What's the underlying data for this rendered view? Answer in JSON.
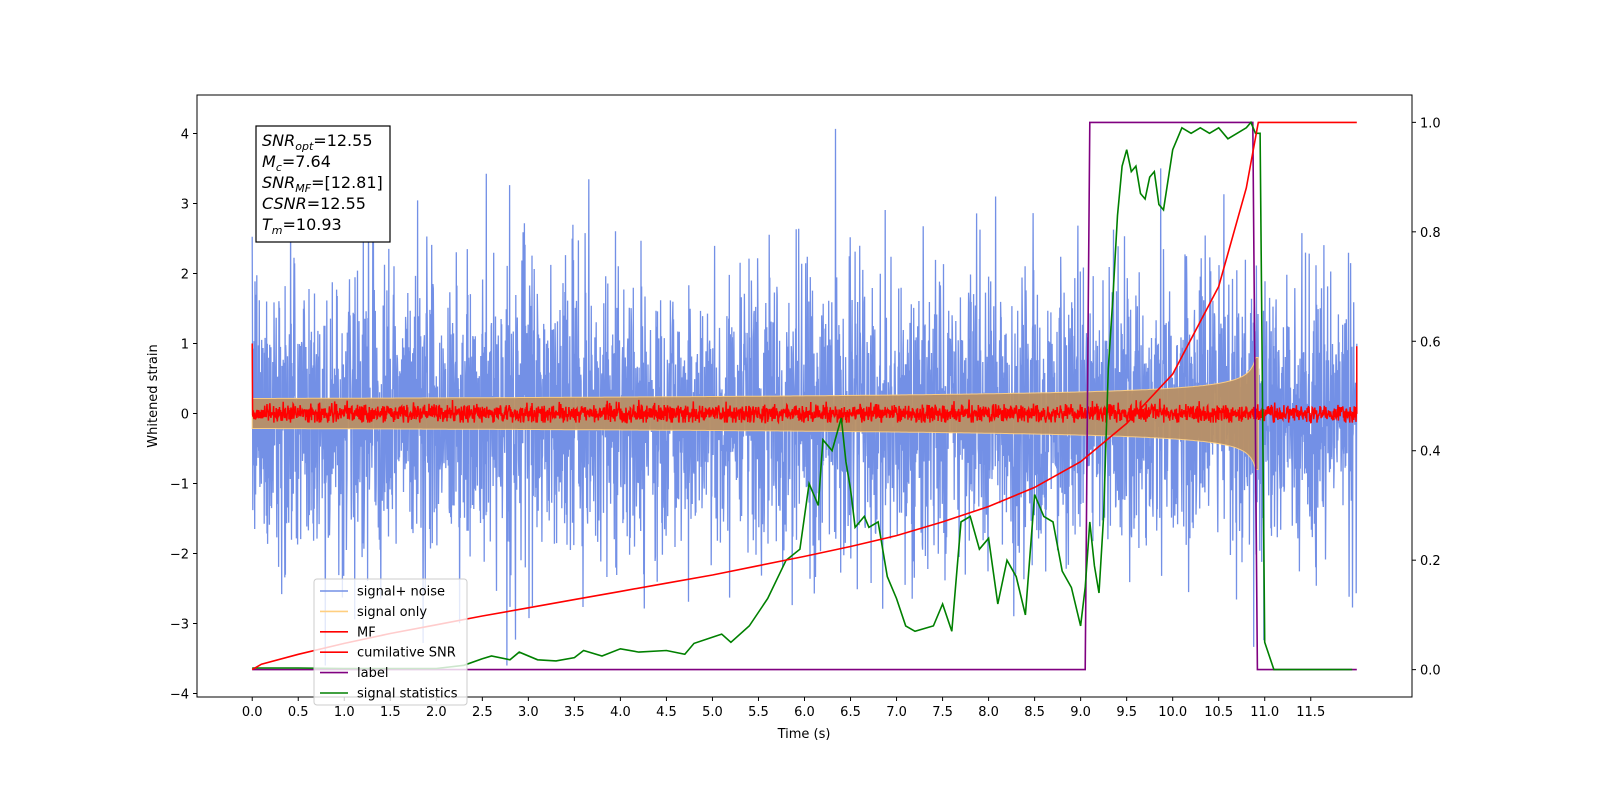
{
  "chart_data": {
    "type": "line",
    "xlabel": "Time (s)",
    "ylabel": "Whitened strain",
    "xlim": [
      -0.6,
      12.6
    ],
    "ylim": [
      -4.05,
      4.55
    ],
    "ylim_right": [
      -0.05,
      1.05
    ],
    "xticks": [
      "0.0",
      "0.5",
      "1.0",
      "1.5",
      "2.0",
      "2.5",
      "3.0",
      "3.5",
      "4.0",
      "4.5",
      "5.0",
      "5.5",
      "6.0",
      "6.5",
      "7.0",
      "7.5",
      "8.0",
      "8.5",
      "9.0",
      "9.5",
      "10.0",
      "10.5",
      "11.0",
      "11.5"
    ],
    "yticks": [
      "−4",
      "−3",
      "−2",
      "−1",
      "0",
      "1",
      "2",
      "3",
      "4"
    ],
    "yticks_right": [
      "0.0",
      "0.2",
      "0.4",
      "0.6",
      "0.8",
      "1.0"
    ],
    "legend_position": "lower-left",
    "annotation": [
      {
        "base": "SNR",
        "sub": "opt",
        "value": "=12.55"
      },
      {
        "base": "M",
        "sub": "c",
        "value": "=7.64"
      },
      {
        "base": "SNR",
        "sub": "MF",
        "value": "=[12.81]"
      },
      {
        "base": "CSNR",
        "sub": "",
        "value": "=12.55"
      },
      {
        "base": "T",
        "sub": "m",
        "value": "=10.93"
      }
    ],
    "series": [
      {
        "name": "signal+ noise",
        "color": "#7390e6",
        "axis": "left",
        "style": "noise band",
        "x_range": [
          0,
          12
        ],
        "envelope": [
          -2.6,
          2.6
        ],
        "peak_max": 4.16,
        "peak_min": -3.62
      },
      {
        "name": "signal only",
        "color": "#ffcf80",
        "axis": "left",
        "style": "chirp",
        "x_range": [
          0,
          10.93
        ],
        "envelope_end": 0.8
      },
      {
        "name": "MF",
        "color": "#ff0000",
        "axis": "left",
        "style": "noise band",
        "x_range": [
          0,
          12
        ],
        "envelope": [
          -0.15,
          0.15
        ],
        "start": 1.0,
        "end": 0.96
      },
      {
        "name": "cumilative SNR",
        "color": "#ff0000",
        "axis": "right",
        "x": [
          0,
          0.1,
          0.5,
          1,
          1.5,
          2,
          2.5,
          3,
          3.5,
          4,
          4.5,
          5,
          5.5,
          6,
          6.5,
          7,
          7.5,
          8,
          8.5,
          9,
          9.5,
          10,
          10.5,
          10.8,
          10.93,
          12
        ],
        "y": [
          0.0,
          0.01,
          0.028,
          0.048,
          0.066,
          0.082,
          0.098,
          0.113,
          0.128,
          0.143,
          0.158,
          0.173,
          0.19,
          0.207,
          0.225,
          0.245,
          0.27,
          0.298,
          0.333,
          0.38,
          0.45,
          0.54,
          0.7,
          0.88,
          1.0,
          1.0
        ]
      },
      {
        "name": "label",
        "color": "#800080",
        "axis": "right",
        "x": [
          0,
          9.05,
          9.1,
          10.87,
          10.92,
          12
        ],
        "y": [
          0,
          0,
          1,
          1,
          0,
          0
        ]
      },
      {
        "name": "signal statistics",
        "color": "#008000",
        "axis": "right",
        "x": [
          0,
          0.5,
          1,
          1.5,
          2,
          2.3,
          2.5,
          2.6,
          2.8,
          2.9,
          3.1,
          3.3,
          3.5,
          3.6,
          3.8,
          4.0,
          4.2,
          4.5,
          4.7,
          4.8,
          5.1,
          5.2,
          5.4,
          5.6,
          5.8,
          5.95,
          6.05,
          6.15,
          6.2,
          6.3,
          6.35,
          6.4,
          6.45,
          6.5,
          6.55,
          6.6,
          6.65,
          6.7,
          6.8,
          6.9,
          7.0,
          7.1,
          7.2,
          7.4,
          7.5,
          7.6,
          7.7,
          7.8,
          7.9,
          8.0,
          8.1,
          8.2,
          8.3,
          8.4,
          8.5,
          8.6,
          8.7,
          8.8,
          8.9,
          9.0,
          9.05,
          9.1,
          9.15,
          9.2,
          9.25,
          9.3,
          9.35,
          9.4,
          9.45,
          9.5,
          9.55,
          9.6,
          9.65,
          9.7,
          9.75,
          9.8,
          9.85,
          9.9,
          10.0,
          10.1,
          10.2,
          10.3,
          10.4,
          10.5,
          10.6,
          10.7,
          10.8,
          10.85,
          10.9,
          10.95,
          11.0,
          11.1,
          11.5,
          11.95
        ],
        "y": [
          0.003,
          0.003,
          0.002,
          0.002,
          0.002,
          0.008,
          0.02,
          0.025,
          0.018,
          0.032,
          0.018,
          0.016,
          0.022,
          0.035,
          0.025,
          0.038,
          0.032,
          0.035,
          0.028,
          0.048,
          0.065,
          0.05,
          0.08,
          0.13,
          0.2,
          0.22,
          0.34,
          0.3,
          0.42,
          0.4,
          0.43,
          0.46,
          0.38,
          0.33,
          0.26,
          0.27,
          0.28,
          0.26,
          0.27,
          0.17,
          0.13,
          0.08,
          0.07,
          0.08,
          0.12,
          0.07,
          0.27,
          0.28,
          0.22,
          0.24,
          0.12,
          0.2,
          0.17,
          0.1,
          0.32,
          0.28,
          0.27,
          0.18,
          0.15,
          0.08,
          0.15,
          0.27,
          0.19,
          0.14,
          0.28,
          0.55,
          0.68,
          0.83,
          0.92,
          0.95,
          0.91,
          0.92,
          0.87,
          0.86,
          0.9,
          0.91,
          0.85,
          0.84,
          0.95,
          0.99,
          0.98,
          0.99,
          0.98,
          0.99,
          0.97,
          0.98,
          0.99,
          1.0,
          0.98,
          0.98,
          0.05,
          0.0,
          0.0,
          0.0
        ]
      }
    ]
  }
}
